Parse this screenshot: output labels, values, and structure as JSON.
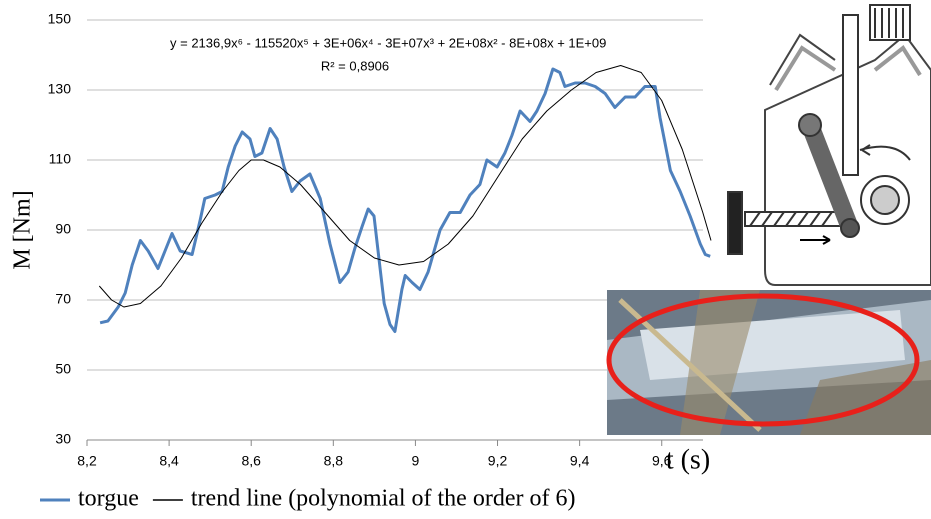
{
  "chart_data": {
    "type": "line",
    "annotations": [
      "y = 2136,9x⁶ - 115520x⁵ + 3E+06x⁴ - 3E+07x³ + 2E+08x² - 8E+08x + 1E+09",
      "R² = 0,8906"
    ],
    "y_label": "M [Nm]",
    "x_label": "t (s)",
    "xlim": [
      8.2,
      9.72
    ],
    "ylim": [
      30,
      150
    ],
    "xticks": [
      {
        "value": 8.2,
        "label": "8,2"
      },
      {
        "value": 8.4,
        "label": "8,4"
      },
      {
        "value": 8.6,
        "label": "8,6"
      },
      {
        "value": 8.8,
        "label": "8,8"
      },
      9,
      {
        "value": 9.2,
        "label": "9,2"
      },
      {
        "value": 9.4,
        "label": "9,4"
      },
      {
        "value": 9.6,
        "label": "9,6"
      }
    ],
    "yticks": [
      30,
      50,
      70,
      90,
      110,
      130,
      150
    ],
    "grid": true,
    "legend": "bottom",
    "series": [
      {
        "name": "torgue",
        "color": "#4f81bd",
        "x": [
          8.232,
          8.251,
          8.276,
          8.293,
          8.31,
          8.33,
          8.349,
          8.373,
          8.39,
          8.407,
          8.427,
          8.456,
          8.476,
          8.487,
          8.512,
          8.529,
          8.544,
          8.561,
          8.578,
          8.597,
          8.609,
          8.626,
          8.646,
          8.663,
          8.68,
          8.699,
          8.719,
          8.743,
          8.768,
          8.792,
          8.816,
          8.836,
          8.853,
          8.87,
          8.885,
          8.899,
          8.914,
          8.924,
          8.938,
          8.95,
          8.967,
          8.975,
          8.992,
          9.011,
          9.031,
          9.06,
          9.084,
          9.109,
          9.133,
          9.157,
          9.174,
          9.199,
          9.218,
          9.235,
          9.255,
          9.279,
          9.296,
          9.316,
          9.335,
          9.352,
          9.364,
          9.389,
          9.413,
          9.438,
          9.462,
          9.486,
          9.511,
          9.535,
          9.559,
          9.584,
          9.596,
          9.621,
          9.645,
          9.669,
          9.694,
          9.706,
          9.718
        ],
        "values": [
          63.5,
          64,
          68,
          72,
          80,
          87,
          84,
          79,
          84,
          89,
          84,
          83,
          93,
          99,
          100,
          101,
          108,
          114,
          118,
          116,
          111,
          112,
          119,
          116,
          108,
          101,
          104,
          106,
          99,
          86,
          75,
          78,
          85,
          91,
          96,
          94,
          79,
          69,
          63,
          61,
          73,
          77,
          75,
          73,
          78,
          90,
          95,
          95,
          100,
          103,
          110,
          108,
          112,
          117,
          124,
          121,
          124,
          129,
          136,
          135,
          131,
          132,
          132,
          131,
          129,
          125,
          128,
          128,
          131,
          131,
          122,
          107,
          101,
          94,
          86,
          83,
          82.5
        ]
      },
      {
        "name": "trend line (polynomial of the order of 6)",
        "color": "#000000",
        "x": [
          8.23,
          8.26,
          8.29,
          8.33,
          8.38,
          8.43,
          8.48,
          8.53,
          8.57,
          8.6,
          8.63,
          8.67,
          8.72,
          8.78,
          8.84,
          8.9,
          8.96,
          9.02,
          9.08,
          9.14,
          9.2,
          9.26,
          9.32,
          9.38,
          9.44,
          9.5,
          9.55,
          9.6,
          9.65,
          9.7,
          9.72
        ],
        "values": [
          74,
          70,
          68,
          69,
          74,
          82,
          92,
          101,
          107,
          110,
          110,
          108,
          103,
          95,
          87,
          82,
          80,
          81,
          86,
          94,
          105,
          116,
          124,
          130,
          135,
          137,
          135,
          127,
          113,
          95,
          87
        ]
      }
    ]
  }
}
